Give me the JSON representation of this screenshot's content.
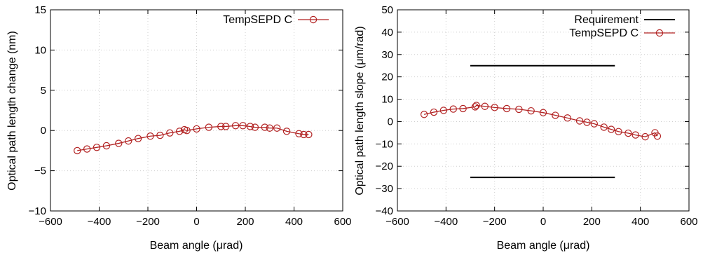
{
  "chart_data": [
    {
      "type": "line",
      "xlabel": "Beam angle (μrad)",
      "ylabel": "Optical path length change (nm)",
      "xlim": [
        -600,
        600
      ],
      "ylim": [
        -10,
        15
      ],
      "xticks": [
        -600,
        -400,
        -200,
        0,
        200,
        400,
        600
      ],
      "yticks": [
        -10,
        -5,
        0,
        5,
        10,
        15
      ],
      "xtick_labels": [
        "−600",
        "−400",
        "−200",
        "0",
        "200",
        "400",
        "600"
      ],
      "ytick_labels": [
        "−10",
        "−5",
        "0",
        "5",
        "10",
        "15"
      ],
      "grid": true,
      "legend_position": "top-right",
      "series": [
        {
          "name": "TempSEPD C",
          "color": "#b22222",
          "marker": "open-circle",
          "x": [
            -490,
            -450,
            -410,
            -370,
            -320,
            -280,
            -240,
            -190,
            -150,
            -110,
            -70,
            -50,
            -40,
            0,
            50,
            100,
            120,
            160,
            190,
            220,
            240,
            280,
            300,
            330,
            370,
            420,
            440,
            460
          ],
          "y": [
            -2.5,
            -2.3,
            -2.1,
            -1.9,
            -1.6,
            -1.3,
            -1.0,
            -0.7,
            -0.6,
            -0.3,
            -0.1,
            0.1,
            0.0,
            0.2,
            0.4,
            0.5,
            0.5,
            0.6,
            0.6,
            0.5,
            0.4,
            0.4,
            0.3,
            0.3,
            -0.1,
            -0.4,
            -0.5,
            -0.5
          ]
        }
      ]
    },
    {
      "type": "line",
      "xlabel": "Beam angle (μrad)",
      "ylabel": "Optical path length slope (μm/rad)",
      "xlim": [
        -600,
        600
      ],
      "ylim": [
        -40,
        50
      ],
      "xticks": [
        -600,
        -400,
        -200,
        0,
        200,
        400,
        600
      ],
      "yticks": [
        -40,
        -30,
        -20,
        -10,
        0,
        10,
        20,
        30,
        40,
        50
      ],
      "xtick_labels": [
        "−600",
        "−400",
        "−200",
        "0",
        "200",
        "400",
        "600"
      ],
      "ytick_labels": [
        "−40",
        "−30",
        "−20",
        "−10",
        "0",
        "10",
        "20",
        "30",
        "40",
        "50"
      ],
      "grid": true,
      "legend_position": "top-right",
      "series": [
        {
          "name": "Requirement",
          "color": "#000000",
          "marker": "none",
          "segments": [
            {
              "x": [
                -300,
                295
              ],
              "y": [
                25,
                25
              ]
            },
            {
              "x": [
                -300,
                295
              ],
              "y": [
                -25,
                -25
              ]
            }
          ]
        },
        {
          "name": "TempSEPD C",
          "color": "#b22222",
          "marker": "open-circle",
          "x": [
            -490,
            -450,
            -410,
            -370,
            -330,
            -280,
            -275,
            -240,
            -200,
            -150,
            -100,
            -50,
            0,
            50,
            100,
            150,
            180,
            210,
            250,
            280,
            310,
            350,
            380,
            420,
            460,
            470
          ],
          "y": [
            3.2,
            4.2,
            5.0,
            5.6,
            5.8,
            6.6,
            7.2,
            6.8,
            6.3,
            5.8,
            5.5,
            4.8,
            4.0,
            2.8,
            1.6,
            0.3,
            -0.3,
            -1.0,
            -2.5,
            -3.5,
            -4.5,
            -5.2,
            -6.0,
            -6.8,
            -5.0,
            -6.5
          ]
        }
      ]
    }
  ]
}
